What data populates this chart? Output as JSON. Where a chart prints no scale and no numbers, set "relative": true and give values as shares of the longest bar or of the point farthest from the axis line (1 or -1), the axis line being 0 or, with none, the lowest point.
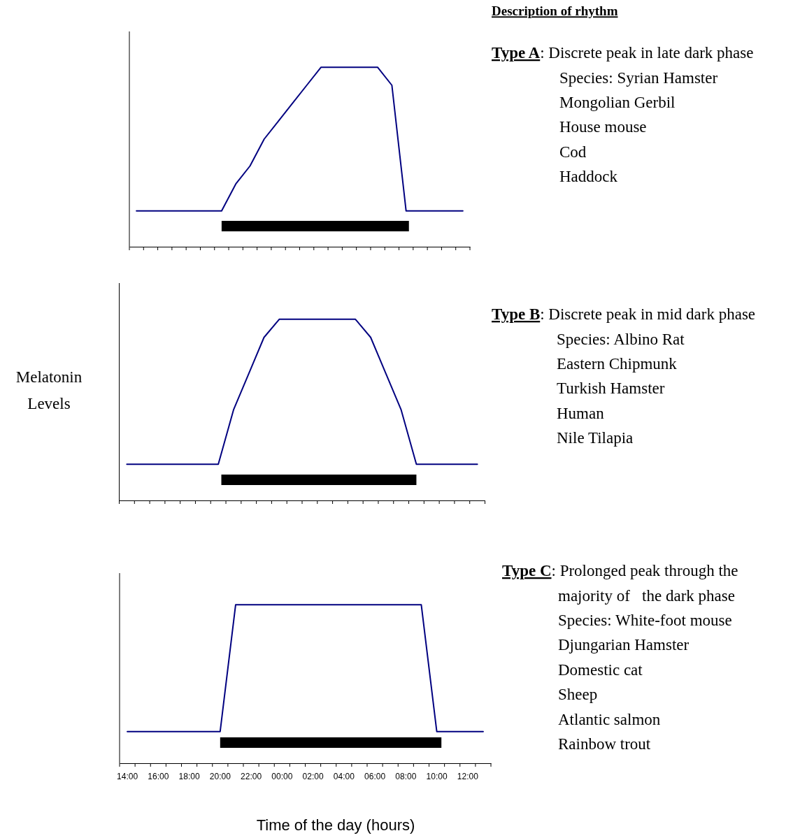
{
  "chart_data": [
    {
      "type": "line",
      "relative": true,
      "tick_labels": false,
      "annotations": [
        "Description of rhythm",
        "Type A: Discrete peak in late dark phase",
        "Species: Syrian Hamster",
        "Mongolian Gerbil",
        "House mouse",
        "Cod",
        "Haddock"
      ],
      "categories": [
        null,
        null,
        null,
        null,
        null,
        null,
        null,
        null,
        null,
        null,
        null,
        null,
        null,
        null,
        null,
        null,
        null,
        null,
        null,
        null,
        null,
        null,
        null,
        null
      ],
      "series": [
        {
          "color": "#000080",
          "values": [
            0.2,
            0.2,
            0.2,
            0.2,
            0.2,
            0.2,
            0.2,
            0.35,
            0.45,
            0.6,
            0.7,
            0.8,
            0.9,
            1,
            1,
            1,
            1,
            1,
            0.9,
            0.2,
            0.2,
            0.2,
            0.2,
            0.2
          ]
        }
      ]
    },
    {
      "type": "line",
      "ylabel": "Melatonin Levels",
      "relative": true,
      "tick_labels": false,
      "annotations": [
        "Type B: Discrete peak in mid dark phase",
        "Species: Albino Rat",
        "Eastern Chipmunk",
        "Turkish Hamster",
        "Human",
        "Nile Tilapia"
      ],
      "categories": [
        null,
        null,
        null,
        null,
        null,
        null,
        null,
        null,
        null,
        null,
        null,
        null,
        null,
        null,
        null,
        null,
        null,
        null,
        null,
        null,
        null,
        null,
        null,
        null
      ],
      "series": [
        {
          "color": "#000080",
          "values": [
            0.2,
            0.2,
            0.2,
            0.2,
            0.2,
            0.2,
            0.2,
            0.5,
            0.7,
            0.9,
            1,
            1,
            1,
            1,
            1,
            1,
            0.9,
            0.7,
            0.5,
            0.2,
            0.2,
            0.2,
            0.2,
            0.2
          ]
        }
      ]
    },
    {
      "type": "line",
      "xlabel": "Time of the day (hours)",
      "relative": true,
      "tick_labels": "x",
      "annotations": [
        "Type C: Prolonged peak through the",
        "majority of   the dark phase",
        "Species: White-foot mouse",
        "Djungarian Hamster",
        "Domestic cat",
        "Sheep",
        "Atlantic salmon",
        "Rainbow trout"
      ],
      "categories": [
        "14:00",
        null,
        "16:00",
        null,
        "18:00",
        null,
        "20:00",
        null,
        "22:00",
        null,
        "00:00",
        null,
        "02:00",
        null,
        "04:00",
        null,
        "06:00",
        null,
        "08:00",
        null,
        "10:00",
        null,
        "12:00",
        null
      ],
      "series": [
        {
          "color": "#000080",
          "values": [
            0.2,
            0.2,
            0.2,
            0.2,
            0.2,
            0.2,
            0.2,
            1,
            1,
            1,
            1,
            1,
            1,
            1,
            1,
            1,
            1,
            1,
            1,
            1,
            0.2,
            0.2,
            0.2,
            0.2
          ]
        }
      ]
    }
  ]
}
